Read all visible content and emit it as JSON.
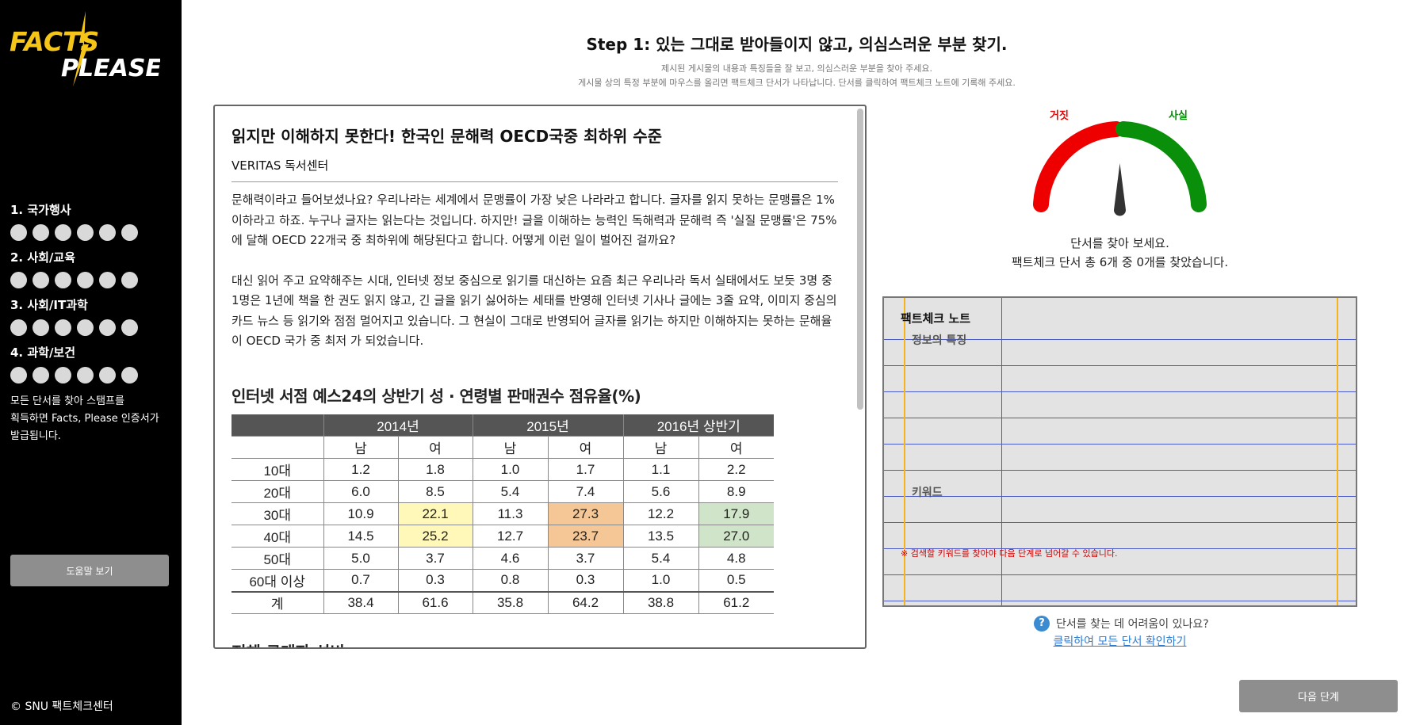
{
  "sidebar": {
    "logo_line1": "FACTS",
    "logo_line2": "PLEASE",
    "categories": [
      {
        "label": "1. 국가행사",
        "stamps": 6
      },
      {
        "label": "2. 사회/교육",
        "stamps": 6
      },
      {
        "label": "3. 사회/IT과학",
        "stamps": 6
      },
      {
        "label": "4. 과학/보건",
        "stamps": 6
      }
    ],
    "note": "모든 단서를 찾아 스탬프를\n획득하면 Facts, Please 인증서가\n발급됩니다.",
    "help_button": "도움말 보기",
    "copyright": "© SNU 팩트체크센터"
  },
  "header": {
    "title": "Step 1: 있는 그대로 받아들이지 않고, 의심스러운 부분 찾기.",
    "desc1": "제시된 게시물의 내용과 특징들을 잘 보고, 의심스러운 부분을 찾아 주세요.",
    "desc2": "게시물 상의 특정 부분에 마우스를 올리면 팩트체크 단서가 나타납니다. 단서를 클릭하여 팩트체크 노트에 기록해 주세요."
  },
  "article": {
    "title": "읽지만 이해하지 못한다! 한국인 문해력 OECD국중 최하위 수준",
    "source": "VERITAS 독서센터",
    "para1": "문해력이라고 들어보셨나요? 우리나라는 세계에서 문맹률이 가장 낮은 나라라고 합니다. 글자를 읽지 못하는 문맹률은 1% 이하라고 하죠. 누구나 글자는 읽는다는 것입니다. 하지만! 글을 이해하는 능력인 독해력과 문해력 즉 '실질 문맹률'은 75%에 달해 OECD 22개국 중 최하위에 해당된다고 합니다. 어떻게 이런 일이 벌어진 걸까요?",
    "para2": "대신 읽어 주고 요약해주는 시대, 인터넷 정보 중심으로 읽기를 대신하는 요즘 최근 우리나라 독서 실태에서도 보듯 3명 중 1명은 1년에 책을 한 권도 읽지 않고, 긴 글을 읽기 싫어하는 세태를 반영해 인터넷 기사나 글에는 3줄 요약, 이미지 중심의 카드 뉴스 등 읽기와 점점 멀어지고 있습니다. 그 현실이 그대로 반영되어 글자를 읽기는 하지만 이해하지는 못하는 문해율이 OECD 국가 중 최저 가 되었습니다.",
    "table_title": "인터넷 서점 예스24의 상반기 성 · 연령별 판매권수 점유율(%)",
    "table": {
      "years": [
        "2014년",
        "2015년",
        "2016년 상반기"
      ],
      "genders": [
        "남",
        "여",
        "남",
        "여",
        "남",
        "여"
      ],
      "rows": [
        {
          "label": "10대",
          "values": [
            "1.2",
            "1.8",
            "1.0",
            "1.7",
            "1.1",
            "2.2"
          ],
          "hl": [
            "",
            "",
            "",
            "",
            "",
            ""
          ]
        },
        {
          "label": "20대",
          "values": [
            "6.0",
            "8.5",
            "5.4",
            "7.4",
            "5.6",
            "8.9"
          ],
          "hl": [
            "",
            "",
            "",
            "",
            "",
            ""
          ]
        },
        {
          "label": "30대",
          "values": [
            "10.9",
            "22.1",
            "11.3",
            "27.3",
            "12.2",
            "17.9"
          ],
          "hl": [
            "",
            "hl-y",
            "",
            "hl-o",
            "",
            "hl-g"
          ]
        },
        {
          "label": "40대",
          "values": [
            "14.5",
            "25.2",
            "12.7",
            "23.7",
            "13.5",
            "27.0"
          ],
          "hl": [
            "",
            "hl-y",
            "",
            "hl-o",
            "",
            "hl-g"
          ]
        },
        {
          "label": "50대",
          "values": [
            "5.0",
            "3.7",
            "4.6",
            "3.7",
            "5.4",
            "4.8"
          ],
          "hl": [
            "",
            "",
            "",
            "",
            "",
            ""
          ]
        },
        {
          "label": "60대 이상",
          "values": [
            "0.7",
            "0.3",
            "0.8",
            "0.3",
            "1.0",
            "0.5"
          ],
          "hl": [
            "",
            "",
            "",
            "",
            "",
            ""
          ]
        },
        {
          "label": "계",
          "values": [
            "38.4",
            "61.6",
            "35.8",
            "64.2",
            "38.8",
            "61.2"
          ],
          "hl": [
            "",
            "",
            "",
            "",
            "",
            ""
          ]
        }
      ]
    },
    "next_section_title": "전체 구매자 성비"
  },
  "gauge": {
    "label_false": "거짓",
    "label_true": "사실",
    "prompt": "단서를 찾아 보세요.",
    "count_text": "팩트체크 단서 총 6개 중 0개를 찾았습니다.",
    "colors": {
      "false": "#ee0000",
      "true": "#0a8f0a",
      "needle": "#333333"
    }
  },
  "notebook": {
    "title": "팩트체크 노트",
    "features_label": "정보의 특징",
    "keyword_label": "키워드",
    "warning": "※ 검색할 키워드를 찾아야 다음 단계로 넘어갈 수 있습니다."
  },
  "help": {
    "icon": "?",
    "question": "단서를 찾는 데 어려움이 있나요?",
    "link": "클릭하여 모든 단서 확인하기"
  },
  "next_button": "다음 단계"
}
